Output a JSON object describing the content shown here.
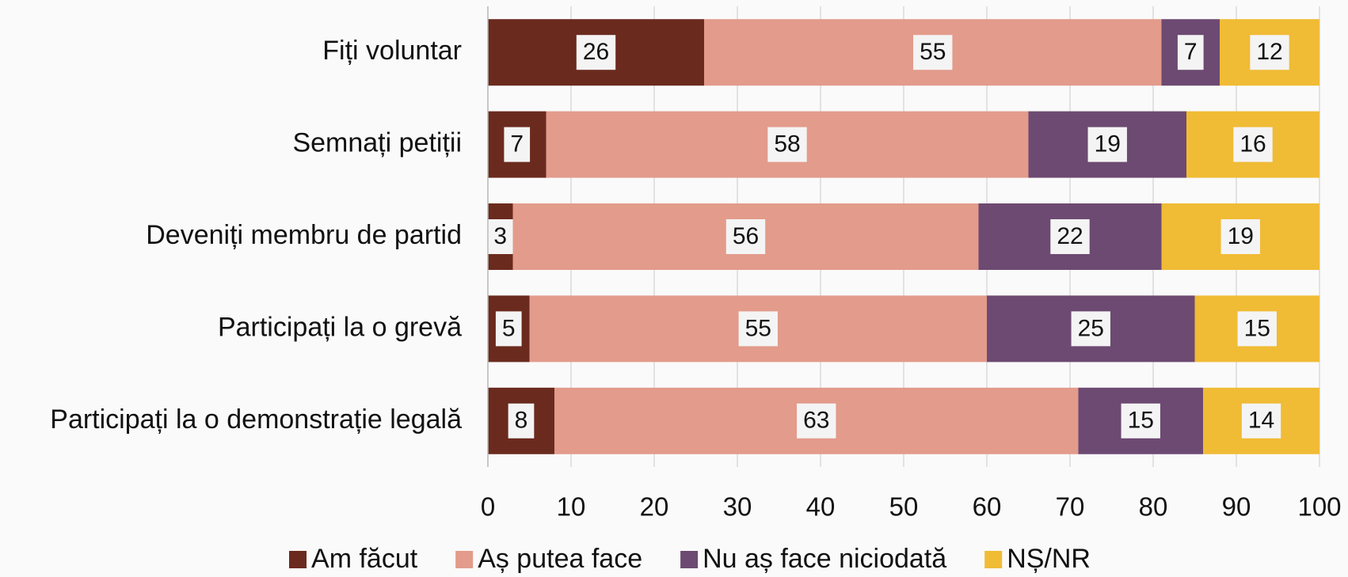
{
  "chart_data": {
    "type": "bar",
    "orientation": "horizontal",
    "stacked": true,
    "categories": [
      "Fiți voluntar",
      "Semnați petiții",
      "Deveniți membru de partid",
      "Participați la o grevă",
      "Participați la o demonstrație legală"
    ],
    "series": [
      {
        "name": "Am făcut",
        "color": "#6b2a1e",
        "values": [
          26,
          7,
          3,
          5,
          8
        ]
      },
      {
        "name": "Aș putea face",
        "color": "#e39b8b",
        "values": [
          55,
          58,
          56,
          55,
          63
        ]
      },
      {
        "name": "Nu aș face niciodată",
        "color": "#6d4a72",
        "values": [
          7,
          19,
          22,
          25,
          15
        ]
      },
      {
        "name": "NȘ/NR",
        "color": "#f0bb35",
        "values": [
          12,
          16,
          19,
          15,
          14
        ]
      }
    ],
    "xlim": [
      0,
      100
    ],
    "xticks": [
      0,
      10,
      20,
      30,
      40,
      50,
      60,
      70,
      80,
      90,
      100
    ],
    "grid": true,
    "legend": "bottom"
  }
}
